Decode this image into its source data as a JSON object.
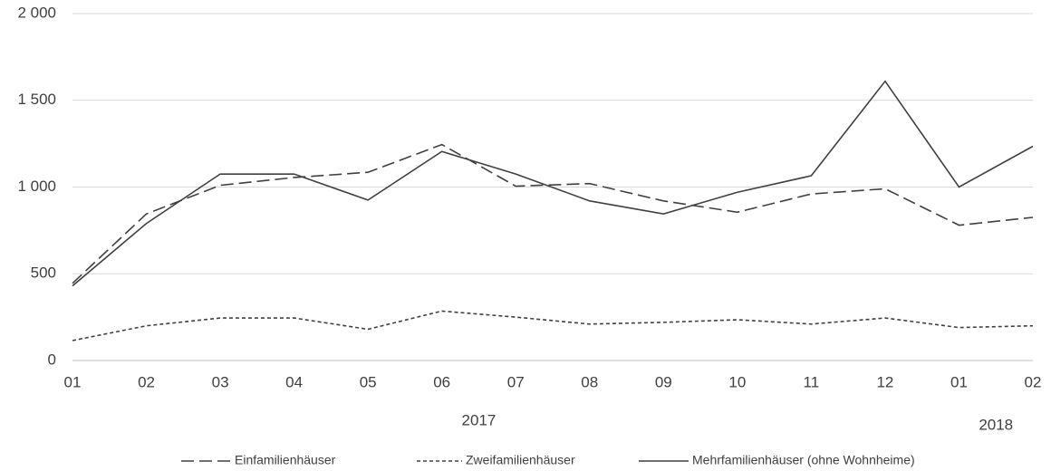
{
  "chart_data": {
    "type": "line",
    "categories": [
      "01",
      "02",
      "03",
      "04",
      "05",
      "06",
      "07",
      "08",
      "09",
      "10",
      "11",
      "12",
      "01",
      "02"
    ],
    "annotations": [
      "2017",
      "2018"
    ],
    "series": [
      {
        "name": "Einfamilienhäuser",
        "color": "#404040",
        "line_style": "dashed",
        "values": [
          445,
          845,
          1010,
          1055,
          1085,
          1245,
          1005,
          1020,
          920,
          855,
          960,
          990,
          780,
          825
        ]
      },
      {
        "name": "Zweifamilienhäuser",
        "color": "#404040",
        "line_style": "dotted",
        "values": [
          115,
          200,
          245,
          245,
          180,
          285,
          250,
          210,
          220,
          235,
          210,
          245,
          190,
          200
        ]
      },
      {
        "name": "Mehrfamilienhäuser (ohne Wohnheime)",
        "color": "#404040",
        "line_style": "solid",
        "values": [
          430,
          790,
          1075,
          1075,
          925,
          1205,
          1075,
          920,
          845,
          970,
          1065,
          1610,
          1000,
          1235
        ]
      }
    ],
    "ylim": [
      0,
      2000
    ],
    "yticks": [
      0,
      500,
      {
        "value": 1000,
        "label": "1 000"
      },
      {
        "value": 1500,
        "label": "1 500"
      },
      {
        "value": 2000,
        "label": "2 000"
      }
    ],
    "grid": true
  }
}
